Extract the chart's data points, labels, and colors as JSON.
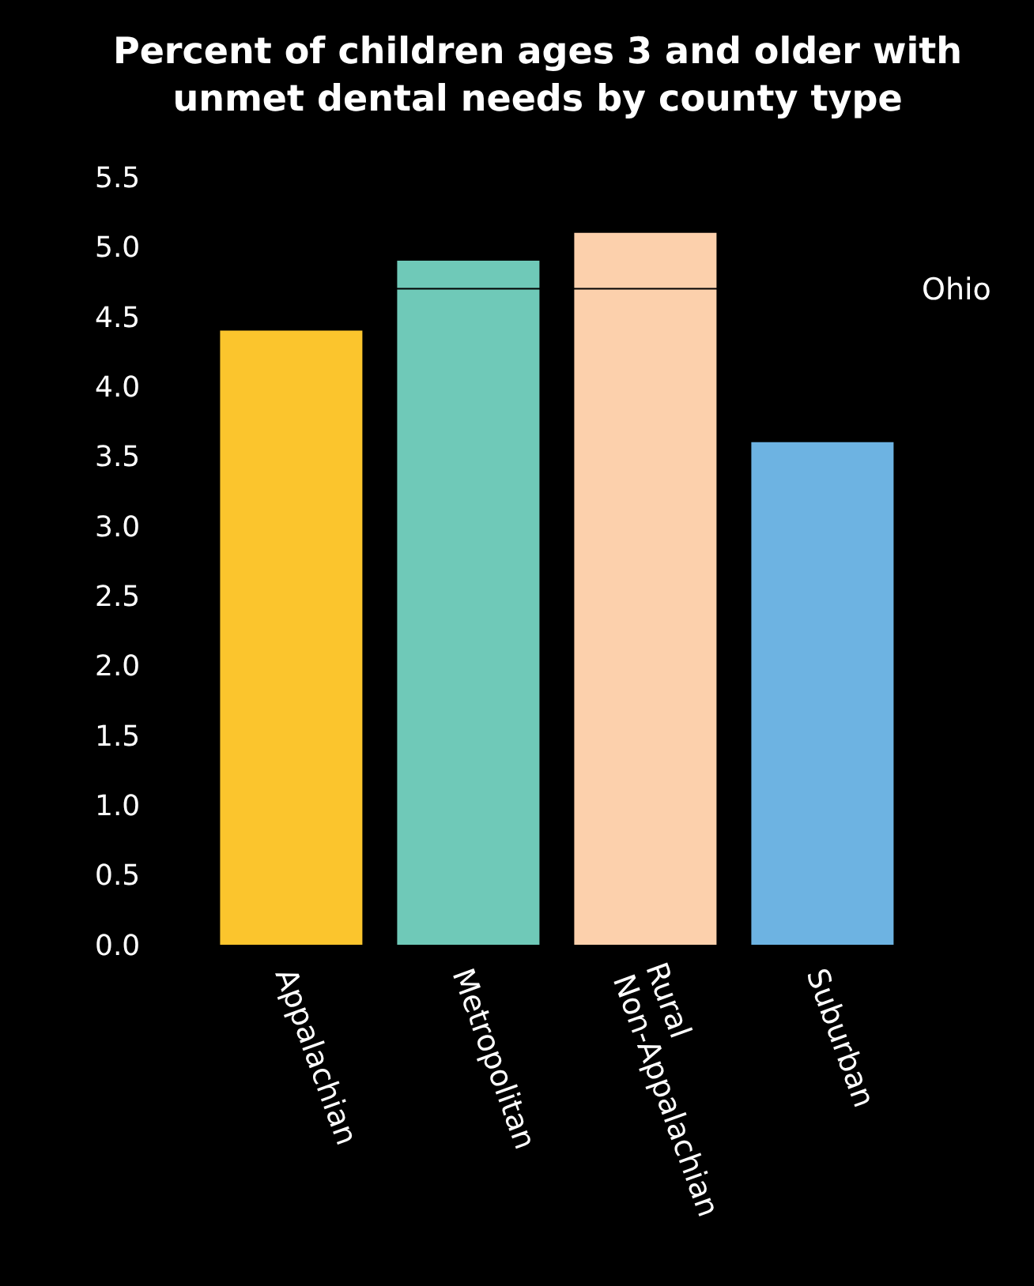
{
  "chart_data": {
    "type": "bar",
    "title": "Percent of children ages 3 and older with unmet dental needs by county type",
    "categories": [
      "Appalachian",
      "Metropolitan",
      "Rural Non-Appalachian",
      "Suburban"
    ],
    "values": [
      4.4,
      4.9,
      5.1,
      3.6
    ],
    "colors": [
      "#fbc52d",
      "#6fc9b8",
      "#fcd0ac",
      "#6db3e2"
    ],
    "ylim": [
      0,
      5.5
    ],
    "yticks": [
      {
        "value": 0,
        "label": "0.0"
      },
      {
        "value": 0.5,
        "label": "0.5"
      },
      {
        "value": 1,
        "label": "1.0"
      },
      {
        "value": 1.5,
        "label": "1.5"
      },
      {
        "value": 2,
        "label": "2.0"
      },
      {
        "value": 2.5,
        "label": "2.5"
      },
      {
        "value": 3,
        "label": "3.0"
      },
      {
        "value": 3.5,
        "label": "3.5"
      },
      {
        "value": 4,
        "label": "4.0"
      },
      {
        "value": 4.5,
        "label": "4.5"
      },
      {
        "value": 5,
        "label": "5.0"
      },
      {
        "value": 5.5,
        "label": "5.5"
      }
    ],
    "ref_lines": [
      {
        "axis": "y",
        "value": 4.7,
        "label": "Ohio",
        "color": "#000000"
      }
    ],
    "grid": false,
    "legend": false
  }
}
